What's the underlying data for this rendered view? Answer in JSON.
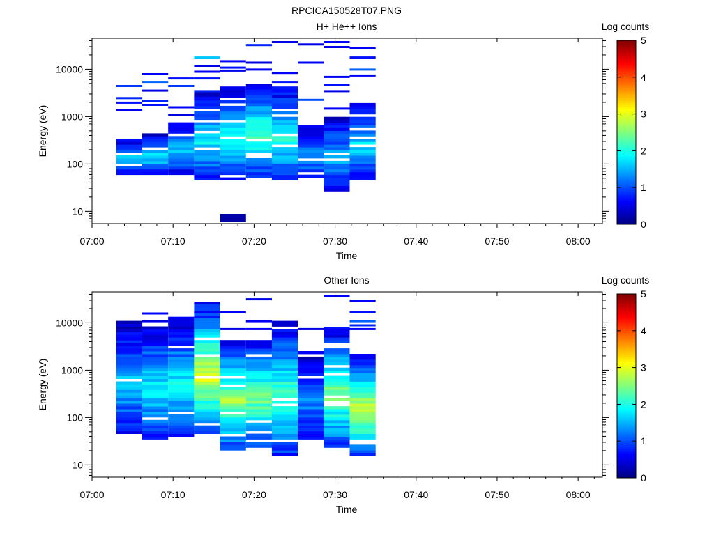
{
  "figure": {
    "filename_title": "RPCICA150528T07.PNG"
  },
  "chart_data": [
    {
      "type": "heatmap",
      "title": "H+ He++ Ions",
      "xlabel": "Time",
      "ylabel": "Energy (eV)",
      "y_scale": "log",
      "ylim": [
        5.5,
        45000
      ],
      "y_ticks": [
        10,
        100,
        1000,
        10000
      ],
      "y_tick_labels": [
        "10",
        "100",
        "1000",
        "10000"
      ],
      "x_range_minutes": [
        0,
        63
      ],
      "x_ticks": [
        0,
        10,
        20,
        30,
        40,
        50,
        60
      ],
      "x_tick_labels": [
        "07:00",
        "07:10",
        "07:20",
        "07:30",
        "07:40",
        "07:50",
        "08:00"
      ],
      "colorbar": {
        "label": "Log counts",
        "range": [
          0,
          5
        ],
        "ticks": [
          "0",
          "1",
          "2",
          "3",
          "4",
          "5"
        ]
      },
      "time_bins_minutes": [
        [
          3.0,
          6.2
        ],
        [
          6.2,
          9.4
        ],
        [
          9.4,
          12.6
        ],
        [
          12.6,
          15.8
        ],
        [
          15.8,
          19.0
        ],
        [
          19.0,
          22.2
        ],
        [
          22.2,
          25.4
        ],
        [
          25.4,
          28.6
        ],
        [
          28.6,
          31.8
        ],
        [
          31.8,
          35.0
        ]
      ],
      "columns": [
        {
          "core": [
            60,
            350,
            1.7
          ],
          "hi": [
            [
              4500,
              0.9
            ],
            [
              2500,
              0.8
            ],
            [
              2000,
              0.7
            ],
            [
              1400,
              0.6
            ]
          ]
        },
        {
          "core": [
            60,
            450,
            1.8
          ],
          "hi": [
            [
              8000,
              0.6
            ],
            [
              5500,
              1.1
            ],
            [
              2200,
              0.8
            ],
            [
              1800,
              0.7
            ],
            [
              3600,
              0.5
            ]
          ]
        },
        {
          "core": [
            60,
            800,
            1.6
          ],
          "hi": [
            [
              6500,
              0.7
            ],
            [
              4500,
              0.9
            ],
            [
              1600,
              0.6
            ],
            [
              1100,
              0.5
            ]
          ]
        },
        {
          "core": [
            40,
            4000,
            1.9
          ],
          "hi": [
            [
              18000,
              1.6
            ],
            [
              12000,
              0.5
            ],
            [
              9000,
              0.6
            ],
            [
              6500,
              0.7
            ],
            [
              3500,
              0.8
            ],
            [
              2500,
              0.7
            ]
          ]
        },
        {
          "core": [
            45,
            4500,
            2.0
          ],
          "hi": [
            [
              15000,
              0.6
            ],
            [
              11000,
              0.7
            ],
            [
              9500,
              0.5
            ],
            [
              8,
              0.2
            ]
          ]
        },
        {
          "core": [
            55,
            5000,
            2.3
          ],
          "hi": [
            [
              33000,
              0.8
            ],
            [
              14000,
              0.5
            ],
            [
              10000,
              0.6
            ]
          ]
        },
        {
          "core": [
            45,
            4500,
            2.1
          ],
          "hi": [
            [
              38000,
              0.5
            ],
            [
              8500,
              0.6
            ],
            [
              5500,
              0.7
            ]
          ]
        },
        {
          "core": [
            45,
            700,
            1.5
          ],
          "hi": [
            [
              34000,
              0.5
            ],
            [
              14000,
              0.6
            ],
            [
              2300,
              1.0
            ]
          ]
        },
        {
          "core": [
            28,
            1000,
            1.6
          ],
          "hi": [
            [
              38000,
              0.6
            ],
            [
              30000,
              0.5
            ],
            [
              7000,
              0.6
            ],
            [
              4800,
              0.7
            ],
            [
              3500,
              0.5
            ],
            [
              1500,
              0.6
            ]
          ]
        },
        {
          "core": [
            45,
            2000,
            1.8
          ],
          "hi": [
            [
              28000,
              0.6
            ],
            [
              18000,
              0.7
            ],
            [
              10000,
              1.1
            ],
            [
              7500,
              0.6
            ]
          ]
        }
      ]
    },
    {
      "type": "heatmap",
      "title": "Other Ions",
      "xlabel": "Time",
      "ylabel": "Energy (eV)",
      "y_scale": "log",
      "ylim": [
        5.5,
        45000
      ],
      "y_ticks": [
        10,
        100,
        1000,
        10000
      ],
      "y_tick_labels": [
        "10",
        "100",
        "1000",
        "10000"
      ],
      "x_range_minutes": [
        0,
        63
      ],
      "x_ticks": [
        0,
        10,
        20,
        30,
        40,
        50,
        60
      ],
      "x_tick_labels": [
        "07:00",
        "07:10",
        "07:20",
        "07:30",
        "07:40",
        "07:50",
        "08:00"
      ],
      "colorbar": {
        "label": "Log counts",
        "range": [
          0,
          5
        ],
        "ticks": [
          "0",
          "1",
          "2",
          "3",
          "4",
          "5"
        ]
      },
      "time_bins_minutes": [
        [
          3.0,
          6.2
        ],
        [
          6.2,
          9.4
        ],
        [
          9.4,
          12.6
        ],
        [
          12.6,
          15.8
        ],
        [
          15.8,
          19.0
        ],
        [
          19.0,
          22.2
        ],
        [
          22.2,
          25.4
        ],
        [
          25.4,
          28.6
        ],
        [
          28.6,
          31.8
        ],
        [
          31.8,
          35.0
        ]
      ],
      "columns": [
        {
          "core": [
            40,
            11000,
            1.6
          ],
          "hi": []
        },
        {
          "core": [
            35,
            9000,
            1.9
          ],
          "hi": [
            [
              16000,
              0.6
            ],
            [
              11000,
              0.5
            ]
          ]
        },
        {
          "core": [
            38,
            12000,
            1.9
          ],
          "hi": [
            [
              13000,
              0.6
            ]
          ]
        },
        {
          "core": [
            45,
            25000,
            3.0
          ],
          "hi": [
            [
              27000,
              0.5
            ],
            [
              17000,
              0.6
            ]
          ]
        },
        {
          "core": [
            20,
            4500,
            2.7
          ],
          "hi": [
            [
              17000,
              0.6
            ],
            [
              7500,
              0.5
            ]
          ]
        },
        {
          "core": [
            22,
            5000,
            2.5
          ],
          "hi": [
            [
              32000,
              0.5
            ],
            [
              11000,
              0.6
            ],
            [
              7500,
              0.6
            ]
          ]
        },
        {
          "core": [
            15,
            11000,
            2.3
          ],
          "hi": []
        },
        {
          "core": [
            35,
            2500,
            1.4
          ],
          "hi": [
            [
              7500,
              0.5
            ]
          ]
        },
        {
          "core": [
            22,
            7500,
            2.5
          ],
          "hi": [
            [
              37000,
              0.6
            ],
            [
              8000,
              0.7
            ],
            [
              6000,
              0.6
            ]
          ]
        },
        {
          "core": [
            15,
            2200,
            2.9
          ],
          "hi": [
            [
              30000,
              0.6
            ],
            [
              17000,
              0.7
            ],
            [
              11000,
              1.1
            ],
            [
              9000,
              0.8
            ],
            [
              7500,
              0.6
            ]
          ]
        }
      ]
    }
  ]
}
